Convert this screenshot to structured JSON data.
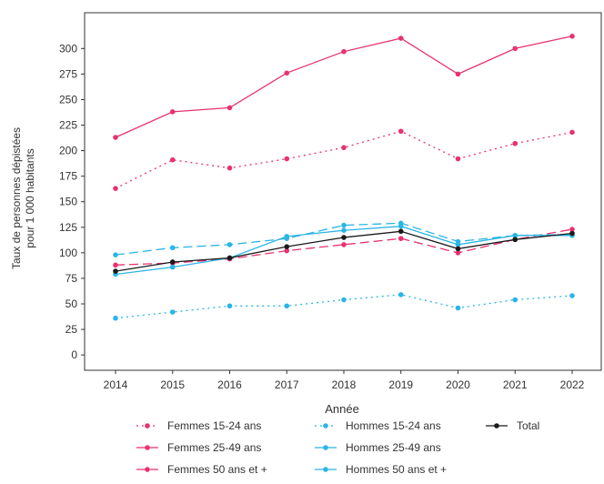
{
  "chart_data": {
    "type": "line",
    "xlabel": "Année",
    "ylabel_lines": [
      "Taux de personnes dépistées",
      "pour 1 000 habitants"
    ],
    "x": [
      "2014",
      "2015",
      "2016",
      "2017",
      "2018",
      "2019",
      "2020",
      "2021",
      "2022"
    ],
    "ylim": [
      -15,
      335
    ],
    "yticks": [
      0,
      25,
      50,
      75,
      100,
      125,
      150,
      175,
      200,
      225,
      250,
      275,
      300
    ],
    "grid": false,
    "legend_position": "bottom",
    "series": [
      {
        "name": "Femmes 15-24 ans",
        "color": "#e8326e",
        "dash": "dotted",
        "values": [
          163,
          191,
          183,
          192,
          203,
          219,
          192,
          207,
          218
        ]
      },
      {
        "name": "Femmes 25-49 ans",
        "color": "#e8326e",
        "dash": "solid",
        "values": [
          213,
          238,
          242,
          276,
          297,
          310,
          275,
          300,
          312
        ]
      },
      {
        "name": "Femmes 50 ans et +",
        "color": "#e8326e",
        "dash": "dashed",
        "values": [
          88,
          90,
          94,
          102,
          108,
          114,
          100,
          113,
          123
        ]
      },
      {
        "name": "Hommes 15-24 ans",
        "color": "#2bb5e6",
        "dash": "dotted",
        "values": [
          36,
          42,
          48,
          48,
          54,
          59,
          46,
          54,
          58
        ]
      },
      {
        "name": "Hommes 25-49 ans",
        "color": "#2bb5e6",
        "dash": "solid",
        "values": [
          79,
          86,
          95,
          116,
          122,
          126,
          108,
          117,
          117
        ]
      },
      {
        "name": "Hommes 50 ans et +",
        "color": "#2bb5e6",
        "dash": "dashed",
        "values": [
          98,
          105,
          108,
          114,
          127,
          129,
          111,
          117,
          118
        ]
      },
      {
        "name": "Total",
        "color": "#1a1a1a",
        "dash": "solid",
        "values": [
          82,
          91,
          95,
          106,
          115,
          121,
          104,
          113,
          119
        ]
      }
    ]
  }
}
